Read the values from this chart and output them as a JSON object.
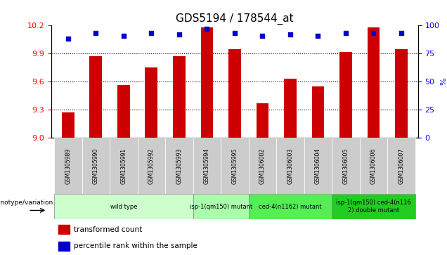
{
  "title": "GDS5194 / 178544_at",
  "samples": [
    "GSM1305989",
    "GSM1305990",
    "GSM1305991",
    "GSM1305992",
    "GSM1305993",
    "GSM1305994",
    "GSM1305995",
    "GSM1306002",
    "GSM1306003",
    "GSM1306004",
    "GSM1306005",
    "GSM1306006",
    "GSM1306007"
  ],
  "transformed_counts": [
    9.27,
    9.87,
    9.56,
    9.75,
    9.87,
    10.18,
    9.95,
    9.37,
    9.63,
    9.55,
    9.92,
    10.18,
    9.95
  ],
  "percentile_ranks": [
    88,
    93,
    91,
    93,
    92,
    97,
    93,
    91,
    92,
    91,
    93,
    93,
    93
  ],
  "ylim_left": [
    9.0,
    10.2
  ],
  "ylim_right": [
    0,
    100
  ],
  "yticks_left": [
    9.0,
    9.3,
    9.6,
    9.9,
    10.2
  ],
  "yticks_right": [
    0,
    25,
    50,
    75,
    100
  ],
  "bar_color": "#cc0000",
  "dot_color": "#0000cc",
  "bg_color": "#ffffff",
  "plot_bg": "#ffffff",
  "xtick_bg": "#cccccc",
  "group_positions": [
    {
      "label": "wild type",
      "start": 0,
      "end": 4,
      "color": "#ccffcc"
    },
    {
      "label": "isp-1(qm150) mutant",
      "start": 5,
      "end": 6,
      "color": "#aaffaa"
    },
    {
      "label": "ced-4(n1162) mutant",
      "start": 7,
      "end": 9,
      "color": "#55ee55"
    },
    {
      "label": "isp-1(qm150) ced-4(n116\n2) double mutant",
      "start": 10,
      "end": 12,
      "color": "#22cc22"
    }
  ],
  "legend_label_red": "transformed count",
  "legend_label_blue": "percentile rank within the sample",
  "genotype_label": "genotype/variation",
  "right_axis_label": "%",
  "title_fontsize": 11,
  "tick_fontsize": 8,
  "bar_width": 0.45
}
